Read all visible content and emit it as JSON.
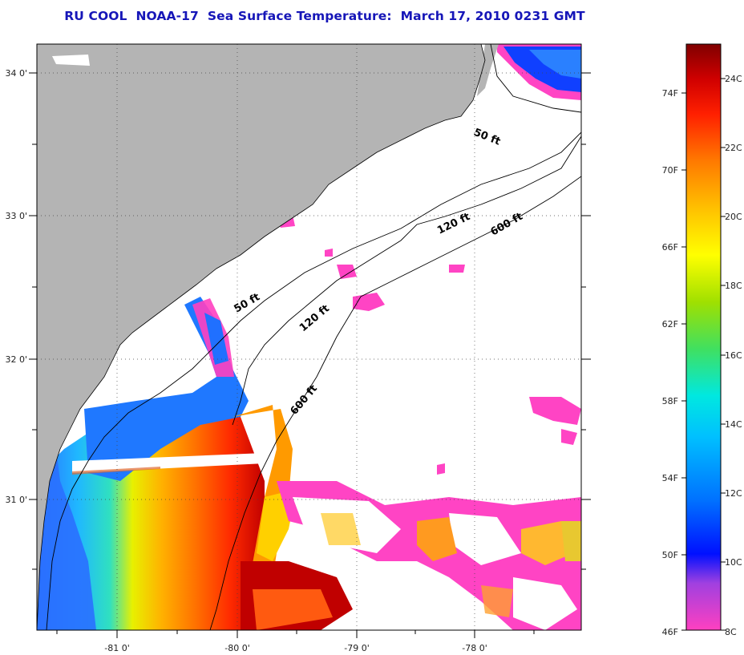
{
  "title": "RU COOL  NOAA-17  Sea Surface Temperature:  March 17, 2010 0231 GMT",
  "map": {
    "lat_labels": [
      "34 0'",
      "33 0'",
      "32 0'",
      "31 0'"
    ],
    "lon_labels": [
      "-81 0'",
      "-80 0'",
      "-79 0'",
      "-78 0'"
    ],
    "isobaths": [
      {
        "label": "50 ft"
      },
      {
        "label": "50 ft"
      },
      {
        "label": "120 ft"
      },
      {
        "label": "120 ft"
      },
      {
        "label": "600 ft"
      },
      {
        "label": "600 ft"
      }
    ],
    "colors": {
      "land": "#b4b4b4",
      "cloud": "#ffffff",
      "coast": "#000000",
      "grid": "#444444"
    }
  },
  "colorbar": {
    "fahrenheit_labels": [
      "74F",
      "70F",
      "66F",
      "62F",
      "58F",
      "54F",
      "50F",
      "46F"
    ],
    "celsius_labels": [
      "24C",
      "22C",
      "20C",
      "18C",
      "16C",
      "14C",
      "12C",
      "10C",
      "8C"
    ],
    "colors": [
      "#ff40c0",
      "#a040e0",
      "#0010ff",
      "#0070ff",
      "#00c0ff",
      "#00e8e0",
      "#40e060",
      "#a0e000",
      "#ffff00",
      "#ffc000",
      "#ff7a00",
      "#ff2000",
      "#d00000",
      "#800000"
    ]
  }
}
